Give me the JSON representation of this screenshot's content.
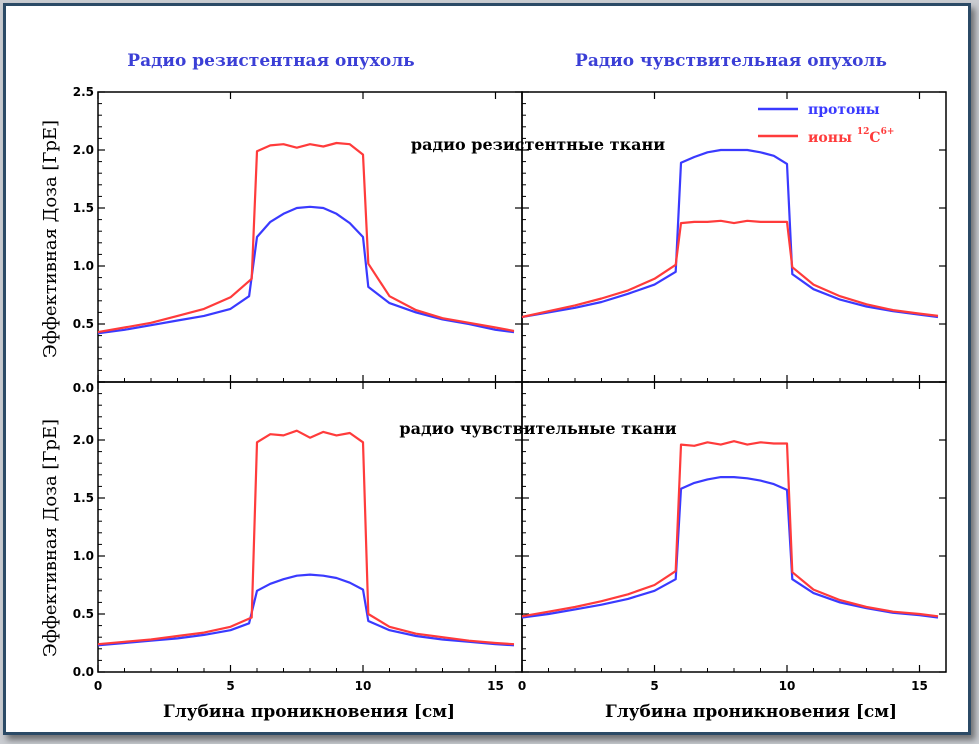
{
  "column_titles": [
    "Радио резистентная опухоль",
    "Радио чувствительная опухоль"
  ],
  "row_labels": [
    "радио резистентные ткани",
    "радио чувствительные ткани"
  ],
  "ylabel": "Эффективная Доза [ГрЕ]",
  "xlabel": "Глубина проникновения [см]",
  "legend": {
    "protons": "протоны",
    "ions_prefix": "ионы ",
    "ions_mass": "12",
    "ions_symbol": "C",
    "ions_charge": "6+"
  },
  "colors": {
    "protons": "#3a3aff",
    "ions": "#ff3b3b",
    "title": "#3b3fd6",
    "frame": "#2b4a66"
  },
  "chart_data": [
    {
      "type": "line",
      "panel": "top-left",
      "xlim": [
        0,
        16
      ],
      "ylim": [
        0,
        2.5
      ],
      "xticks": [
        0,
        5,
        10,
        15
      ],
      "yticks": [
        0.5,
        1.0,
        1.5,
        2.0,
        2.5
      ],
      "ytick_labels": [
        "0.5",
        "1.0",
        "1.5",
        "2.0",
        "2.5"
      ],
      "series": [
        {
          "name": "протоны",
          "x": [
            0,
            1,
            2,
            3,
            4,
            5,
            5.7,
            6,
            6.5,
            7,
            7.5,
            8,
            8.5,
            9,
            9.5,
            10,
            10.2,
            11,
            12,
            13,
            14,
            15,
            15.7
          ],
          "y": [
            0.42,
            0.45,
            0.49,
            0.53,
            0.57,
            0.63,
            0.74,
            1.25,
            1.38,
            1.45,
            1.5,
            1.51,
            1.5,
            1.45,
            1.37,
            1.25,
            0.82,
            0.68,
            0.6,
            0.54,
            0.5,
            0.45,
            0.43
          ]
        },
        {
          "name": "ионы ¹²C⁶⁺",
          "x": [
            0,
            1,
            2,
            3,
            4,
            5,
            5.8,
            6,
            6.5,
            7,
            7.5,
            8,
            8.5,
            9,
            9.5,
            10,
            10.2,
            11,
            12,
            13,
            14,
            15,
            15.7
          ],
          "y": [
            0.43,
            0.47,
            0.51,
            0.57,
            0.63,
            0.73,
            0.89,
            1.99,
            2.04,
            2.05,
            2.02,
            2.05,
            2.03,
            2.06,
            2.05,
            1.96,
            1.02,
            0.74,
            0.62,
            0.55,
            0.51,
            0.47,
            0.44
          ]
        }
      ]
    },
    {
      "type": "line",
      "panel": "top-right",
      "xlim": [
        0,
        16
      ],
      "ylim": [
        0,
        2.5
      ],
      "xticks": [
        0,
        5,
        10,
        15
      ],
      "series": [
        {
          "name": "протоны",
          "x": [
            0,
            1,
            2,
            3,
            4,
            5,
            5.8,
            6,
            6.5,
            7,
            7.5,
            8,
            8.5,
            9,
            9.5,
            10,
            10.2,
            11,
            12,
            13,
            14,
            15,
            15.7
          ],
          "y": [
            0.56,
            0.6,
            0.64,
            0.69,
            0.76,
            0.84,
            0.95,
            1.89,
            1.94,
            1.98,
            2.0,
            2.0,
            2.0,
            1.98,
            1.95,
            1.88,
            0.93,
            0.8,
            0.71,
            0.65,
            0.61,
            0.58,
            0.56
          ]
        },
        {
          "name": "ионы ¹²C⁶⁺",
          "x": [
            0,
            1,
            2,
            3,
            4,
            5,
            5.8,
            6,
            6.5,
            7,
            7.5,
            8,
            8.5,
            9,
            9.5,
            10,
            10.2,
            11,
            12,
            13,
            14,
            15,
            15.7
          ],
          "y": [
            0.56,
            0.61,
            0.66,
            0.72,
            0.79,
            0.89,
            1.01,
            1.37,
            1.38,
            1.38,
            1.39,
            1.37,
            1.39,
            1.38,
            1.38,
            1.38,
            0.99,
            0.84,
            0.74,
            0.67,
            0.62,
            0.59,
            0.57
          ]
        }
      ]
    },
    {
      "type": "line",
      "panel": "bottom-left",
      "xlim": [
        0,
        16
      ],
      "ylim": [
        0,
        2.5
      ],
      "xticks": [
        0,
        5,
        10,
        15
      ],
      "yticks": [
        0.0,
        0.5,
        1.0,
        1.5,
        2.0
      ],
      "ytick_labels": [
        "0.0",
        "0.5",
        "1.0",
        "1.5",
        "2.0"
      ],
      "series": [
        {
          "name": "протоны",
          "x": [
            0,
            1,
            2,
            3,
            4,
            5,
            5.7,
            6,
            6.5,
            7,
            7.5,
            8,
            8.5,
            9,
            9.5,
            10,
            10.2,
            11,
            12,
            13,
            14,
            15,
            15.7
          ],
          "y": [
            0.23,
            0.25,
            0.27,
            0.29,
            0.32,
            0.36,
            0.42,
            0.7,
            0.76,
            0.8,
            0.83,
            0.84,
            0.83,
            0.81,
            0.77,
            0.71,
            0.44,
            0.36,
            0.31,
            0.28,
            0.26,
            0.24,
            0.23
          ]
        },
        {
          "name": "ионы ¹²C⁶⁺",
          "x": [
            0,
            1,
            2,
            3,
            4,
            5,
            5.8,
            6,
            6.5,
            7,
            7.5,
            8,
            8.5,
            9,
            9.5,
            10,
            10.2,
            11,
            12,
            13,
            14,
            15,
            15.7
          ],
          "y": [
            0.24,
            0.26,
            0.28,
            0.31,
            0.34,
            0.39,
            0.47,
            1.98,
            2.05,
            2.04,
            2.08,
            2.02,
            2.07,
            2.04,
            2.06,
            1.98,
            0.5,
            0.39,
            0.33,
            0.3,
            0.27,
            0.25,
            0.24
          ]
        }
      ]
    },
    {
      "type": "line",
      "panel": "bottom-right",
      "xlim": [
        0,
        16
      ],
      "ylim": [
        0,
        2.5
      ],
      "xticks": [
        0,
        5,
        10,
        15
      ],
      "series": [
        {
          "name": "протоны",
          "x": [
            0,
            1,
            2,
            3,
            4,
            5,
            5.8,
            6,
            6.5,
            7,
            7.5,
            8,
            8.5,
            9,
            9.5,
            10,
            10.2,
            11,
            12,
            13,
            14,
            15,
            15.7
          ],
          "y": [
            0.47,
            0.5,
            0.54,
            0.58,
            0.63,
            0.7,
            0.8,
            1.58,
            1.63,
            1.66,
            1.68,
            1.68,
            1.67,
            1.65,
            1.62,
            1.57,
            0.8,
            0.68,
            0.6,
            0.55,
            0.51,
            0.49,
            0.47
          ]
        },
        {
          "name": "ионы ¹²C⁶⁺",
          "x": [
            0,
            1,
            2,
            3,
            4,
            5,
            5.8,
            6,
            6.5,
            7,
            7.5,
            8,
            8.5,
            9,
            9.5,
            10,
            10.2,
            11,
            12,
            13,
            14,
            15,
            15.7
          ],
          "y": [
            0.48,
            0.52,
            0.56,
            0.61,
            0.67,
            0.75,
            0.87,
            1.96,
            1.95,
            1.98,
            1.96,
            1.99,
            1.96,
            1.98,
            1.97,
            1.97,
            0.86,
            0.71,
            0.62,
            0.56,
            0.52,
            0.5,
            0.48
          ]
        }
      ]
    }
  ]
}
